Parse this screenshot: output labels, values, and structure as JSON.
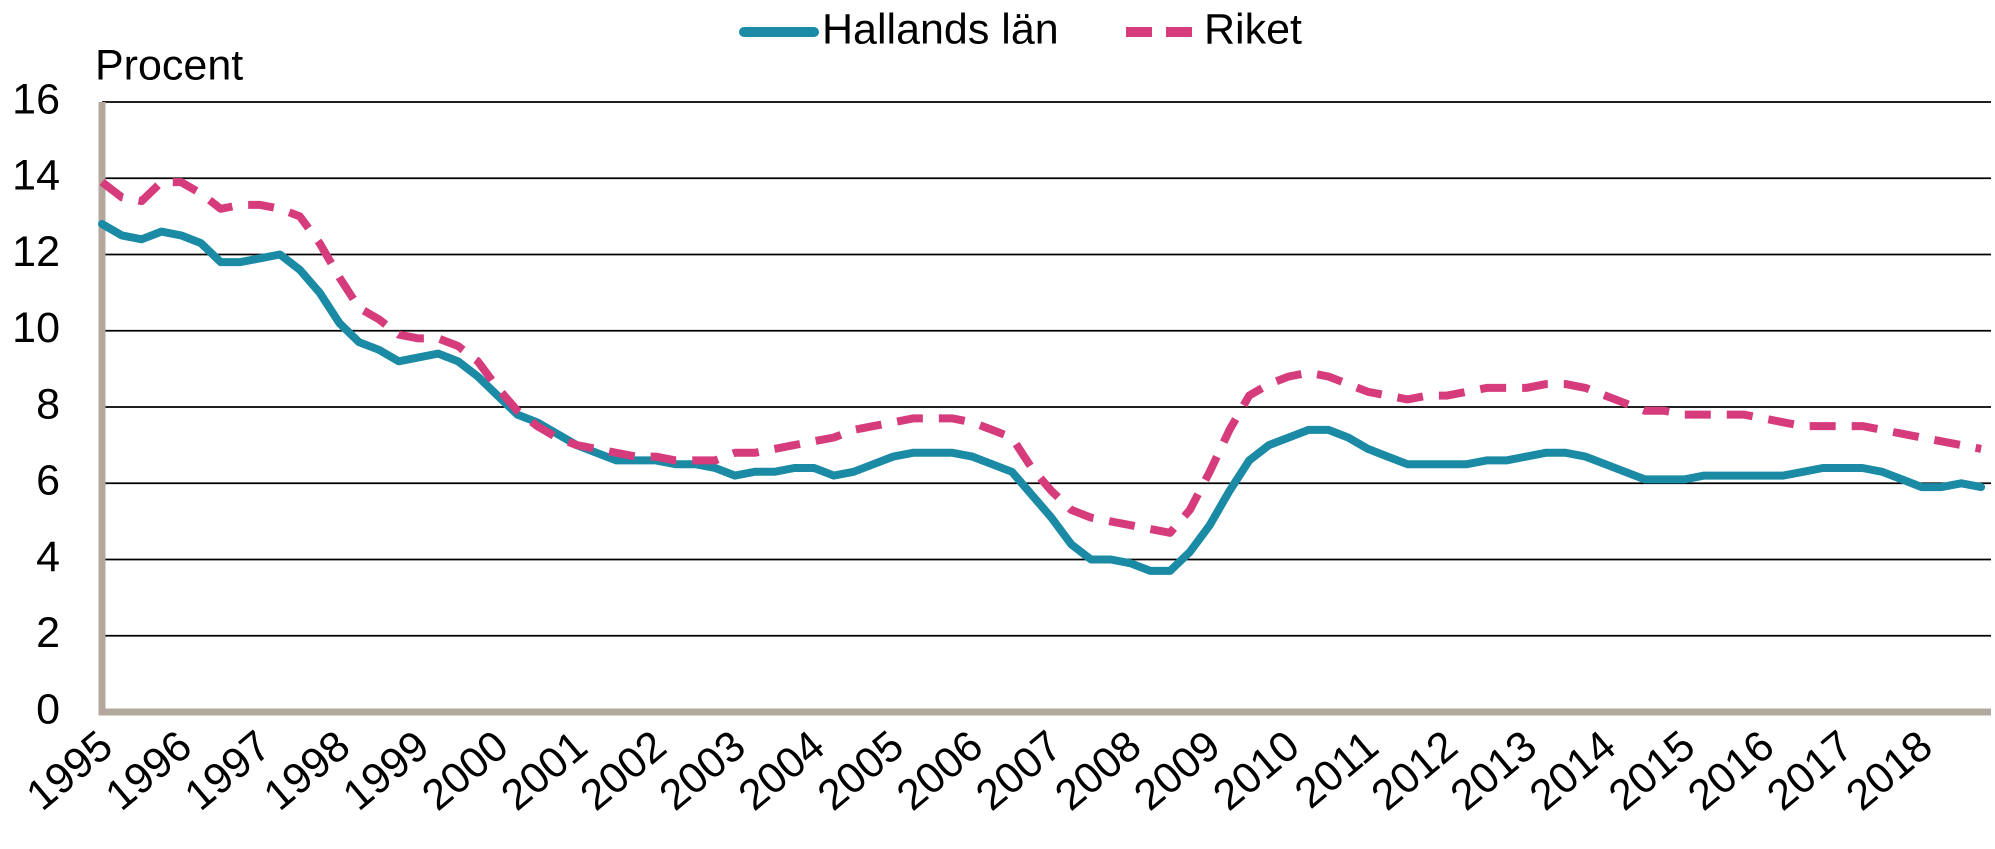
{
  "chart_data": {
    "type": "line",
    "y_label": "Procent",
    "categories": [
      "1995",
      null,
      null,
      null,
      "1996",
      null,
      null,
      null,
      "1997",
      null,
      null,
      null,
      "1998",
      null,
      null,
      null,
      "1999",
      null,
      null,
      null,
      "2000",
      null,
      null,
      null,
      "2001",
      null,
      null,
      null,
      "2002",
      null,
      null,
      null,
      "2003",
      null,
      null,
      null,
      "2004",
      null,
      null,
      null,
      "2005",
      null,
      null,
      null,
      "2006",
      null,
      null,
      null,
      "2007",
      null,
      null,
      null,
      "2008",
      null,
      null,
      null,
      "2009",
      null,
      null,
      null,
      "2010",
      null,
      null,
      null,
      "2011",
      null,
      null,
      null,
      "2012",
      null,
      null,
      null,
      "2013",
      null,
      null,
      null,
      "2014",
      null,
      null,
      null,
      "2015",
      null,
      null,
      null,
      "2016",
      null,
      null,
      null,
      "2017",
      null,
      null,
      null,
      "2018",
      null,
      null,
      null
    ],
    "series": [
      {
        "name": "Hallands län",
        "color": "#1a8aa5",
        "dash": false,
        "values": [
          12.8,
          12.5,
          12.4,
          12.6,
          12.5,
          12.3,
          11.8,
          11.8,
          11.9,
          12.0,
          11.6,
          11.0,
          10.2,
          9.7,
          9.5,
          9.2,
          9.3,
          9.4,
          9.2,
          8.8,
          8.3,
          7.8,
          7.6,
          7.3,
          7.0,
          6.8,
          6.6,
          6.6,
          6.6,
          6.5,
          6.5,
          6.4,
          6.2,
          6.3,
          6.3,
          6.4,
          6.4,
          6.2,
          6.3,
          6.5,
          6.7,
          6.8,
          6.8,
          6.8,
          6.7,
          6.5,
          6.3,
          5.7,
          5.1,
          4.4,
          4.0,
          4.0,
          3.9,
          3.7,
          3.7,
          4.2,
          4.9,
          5.8,
          6.6,
          7.0,
          7.2,
          7.4,
          7.4,
          7.2,
          6.9,
          6.7,
          6.5,
          6.5,
          6.5,
          6.5,
          6.6,
          6.6,
          6.7,
          6.8,
          6.8,
          6.7,
          6.5,
          6.3,
          6.1,
          6.1,
          6.1,
          6.2,
          6.2,
          6.2,
          6.2,
          6.2,
          6.3,
          6.4,
          6.4,
          6.4,
          6.3,
          6.1,
          5.9,
          5.9,
          6.0,
          5.9
        ]
      },
      {
        "name": "Riket",
        "color": "#d63b7c",
        "dash": true,
        "values": [
          13.9,
          13.5,
          13.4,
          13.9,
          13.9,
          13.6,
          13.2,
          13.3,
          13.3,
          13.2,
          13.0,
          12.3,
          11.4,
          10.6,
          10.3,
          9.9,
          9.8,
          9.8,
          9.6,
          9.2,
          8.5,
          7.9,
          7.5,
          7.2,
          7.0,
          6.9,
          6.8,
          6.7,
          6.7,
          6.6,
          6.6,
          6.6,
          6.8,
          6.8,
          6.9,
          7.0,
          7.1,
          7.2,
          7.4,
          7.5,
          7.6,
          7.7,
          7.7,
          7.7,
          7.6,
          7.4,
          7.2,
          6.4,
          5.8,
          5.3,
          5.1,
          5.0,
          4.9,
          4.8,
          4.7,
          5.3,
          6.3,
          7.4,
          8.3,
          8.6,
          8.8,
          8.9,
          8.8,
          8.6,
          8.4,
          8.3,
          8.2,
          8.3,
          8.3,
          8.4,
          8.5,
          8.5,
          8.5,
          8.6,
          8.6,
          8.5,
          8.3,
          8.1,
          7.9,
          7.9,
          7.8,
          7.8,
          7.8,
          7.8,
          7.7,
          7.6,
          7.5,
          7.5,
          7.5,
          7.5,
          7.4,
          7.3,
          7.2,
          7.1,
          7.0,
          6.9
        ]
      }
    ],
    "ylim": [
      0,
      16
    ],
    "yticks": [
      0,
      2,
      4,
      6,
      8,
      10,
      12,
      14,
      16
    ],
    "grid": true,
    "legend": "top"
  }
}
